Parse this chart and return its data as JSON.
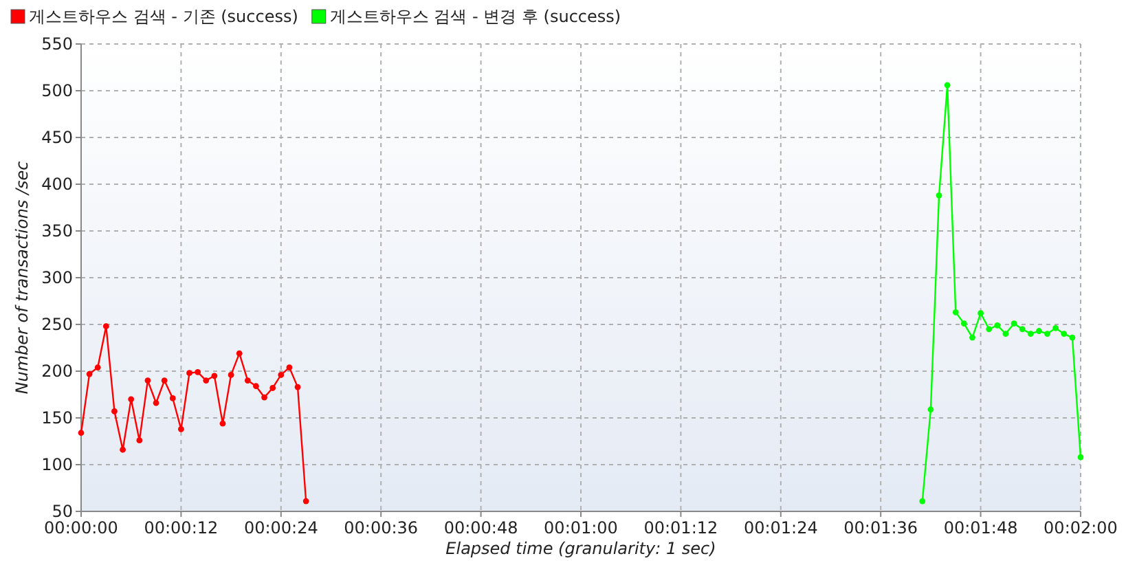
{
  "chart_data": {
    "type": "line",
    "xlabel": "Elapsed time (granularity: 1 sec)",
    "ylabel": "Number of transactions /sec",
    "series": [
      {
        "name": "게스트하우스 검색 - 기존 (success)",
        "color": "#ff0000",
        "x": [
          0,
          1,
          2,
          3,
          4,
          5,
          6,
          7,
          8,
          9,
          10,
          11,
          12,
          13,
          14,
          15,
          16,
          17,
          18,
          19,
          20,
          21,
          22,
          23,
          24,
          25,
          26,
          27
        ],
        "values": [
          134,
          197,
          204,
          248,
          157,
          116,
          170,
          126,
          190,
          166,
          190,
          171,
          138,
          198,
          199,
          190,
          195,
          144,
          196,
          219,
          190,
          184,
          172,
          182,
          196,
          204,
          183,
          61
        ]
      },
      {
        "name": "게스트하우스 검색 - 변경 후 (success)",
        "color": "#00ff00",
        "x": [
          101,
          102,
          103,
          104,
          105,
          106,
          107,
          108,
          109,
          110,
          111,
          112,
          113,
          114,
          115,
          116,
          117,
          118,
          119,
          120
        ],
        "values": [
          61,
          159,
          388,
          506,
          263,
          251,
          236,
          262,
          245,
          249,
          240,
          251,
          245,
          240,
          243,
          240,
          246,
          240,
          236,
          108
        ]
      }
    ],
    "xlim": [
      0,
      120
    ],
    "xticks": [
      {
        "value": 0,
        "label": "00:00:00"
      },
      {
        "value": 12,
        "label": "00:00:12"
      },
      {
        "value": 24,
        "label": "00:00:24"
      },
      {
        "value": 36,
        "label": "00:00:36"
      },
      {
        "value": 48,
        "label": "00:00:48"
      },
      {
        "value": 60,
        "label": "00:01:00"
      },
      {
        "value": 72,
        "label": "00:01:12"
      },
      {
        "value": 84,
        "label": "00:01:24"
      },
      {
        "value": 96,
        "label": "00:01:36"
      },
      {
        "value": 108,
        "label": "00:01:48"
      },
      {
        "value": 120,
        "label": "00:02:00"
      }
    ],
    "ylim": [
      50,
      550
    ],
    "yticks": [
      50,
      100,
      150,
      200,
      250,
      300,
      350,
      400,
      450,
      500,
      550
    ],
    "grid": true,
    "legend": "top left",
    "marker": "circle",
    "line_style": "solid"
  }
}
